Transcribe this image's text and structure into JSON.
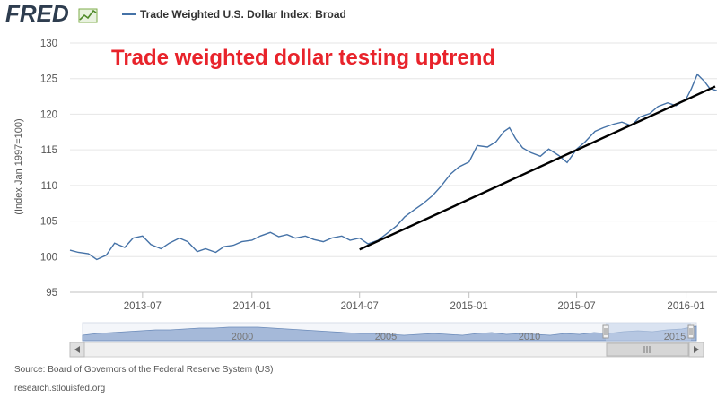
{
  "brand": {
    "logo_text": "FRED",
    "logo_icon": "chart-line-icon"
  },
  "legend": {
    "series_label": "Trade Weighted U.S. Dollar Index: Broad",
    "color": "#4572a7"
  },
  "annotation": {
    "text": "Trade weighted dollar testing uptrend",
    "color": "#e8232b"
  },
  "footer": {
    "source": "Source: Board of Governors of the Federal Reserve System (US)",
    "site": "research.stlouisfed.org"
  },
  "navigator": {
    "labels": [
      "2000",
      "2005",
      "2010",
      "2015"
    ]
  },
  "colors": {
    "series": "#4572a7",
    "trendline": "#000000",
    "grid": "#e6e6e6",
    "navigator_fill": "#9db3d6"
  },
  "chart_data": {
    "type": "line",
    "title": "",
    "xlabel": "",
    "ylabel": "(Index Jan 1997=100)",
    "ylim": [
      95,
      130
    ],
    "xlim": [
      "2013-03-01",
      "2016-02-22"
    ],
    "yticks": [
      95,
      100,
      105,
      110,
      115,
      120,
      125,
      130
    ],
    "xticks": [
      "2013-07",
      "2014-01",
      "2014-07",
      "2015-01",
      "2015-07",
      "2016-01"
    ],
    "grid": true,
    "legend_position": "top",
    "series": [
      {
        "name": "Trade Weighted U.S. Dollar Index: Broad",
        "x": [
          "2013-03-01",
          "2013-03-15",
          "2013-04-01",
          "2013-04-15",
          "2013-05-01",
          "2013-05-15",
          "2013-06-01",
          "2013-06-15",
          "2013-07-01",
          "2013-07-15",
          "2013-08-01",
          "2013-08-15",
          "2013-09-01",
          "2013-09-15",
          "2013-10-01",
          "2013-10-15",
          "2013-11-01",
          "2013-11-15",
          "2013-12-01",
          "2013-12-15",
          "2014-01-01",
          "2014-01-15",
          "2014-02-01",
          "2014-02-15",
          "2014-03-01",
          "2014-03-15",
          "2014-04-01",
          "2014-04-15",
          "2014-05-01",
          "2014-05-15",
          "2014-06-01",
          "2014-06-15",
          "2014-07-01",
          "2014-07-15",
          "2014-08-01",
          "2014-08-15",
          "2014-09-01",
          "2014-09-15",
          "2014-10-01",
          "2014-10-15",
          "2014-11-01",
          "2014-11-15",
          "2014-12-01",
          "2014-12-15",
          "2015-01-01",
          "2015-01-15",
          "2015-02-01",
          "2015-02-15",
          "2015-03-01",
          "2015-03-10",
          "2015-03-20",
          "2015-04-01",
          "2015-04-15",
          "2015-05-01",
          "2015-05-15",
          "2015-06-01",
          "2015-06-15",
          "2015-07-01",
          "2015-07-15",
          "2015-08-01",
          "2015-08-15",
          "2015-09-01",
          "2015-09-15",
          "2015-10-01",
          "2015-10-15",
          "2015-11-01",
          "2015-11-15",
          "2015-12-01",
          "2015-12-15",
          "2016-01-01",
          "2016-01-10",
          "2016-01-20",
          "2016-02-01",
          "2016-02-10",
          "2016-02-22"
        ],
        "values": [
          100.9,
          100.6,
          100.4,
          99.6,
          100.2,
          101.9,
          101.3,
          102.6,
          102.9,
          101.7,
          101.1,
          101.9,
          102.6,
          102.1,
          100.7,
          101.1,
          100.6,
          101.4,
          101.6,
          102.1,
          102.3,
          102.9,
          103.4,
          102.8,
          103.1,
          102.6,
          102.9,
          102.4,
          102.1,
          102.6,
          102.9,
          102.3,
          102.6,
          101.8,
          102.3,
          103.2,
          104.3,
          105.6,
          106.6,
          107.4,
          108.6,
          109.9,
          111.6,
          112.6,
          113.3,
          115.6,
          115.4,
          116.1,
          117.6,
          118.1,
          116.6,
          115.3,
          114.6,
          114.1,
          115.1,
          114.2,
          113.2,
          115.1,
          116.1,
          117.6,
          118.1,
          118.6,
          118.9,
          118.4,
          119.6,
          120.1,
          121.1,
          121.6,
          121.2,
          122.1,
          123.6,
          125.6,
          124.6,
          123.6,
          123.3
        ]
      }
    ],
    "annotations": [
      {
        "type": "trendline",
        "x": [
          "2014-07-01",
          "2016-02-22"
        ],
        "y": [
          101.0,
          123.9
        ],
        "color": "#000000"
      }
    ]
  }
}
